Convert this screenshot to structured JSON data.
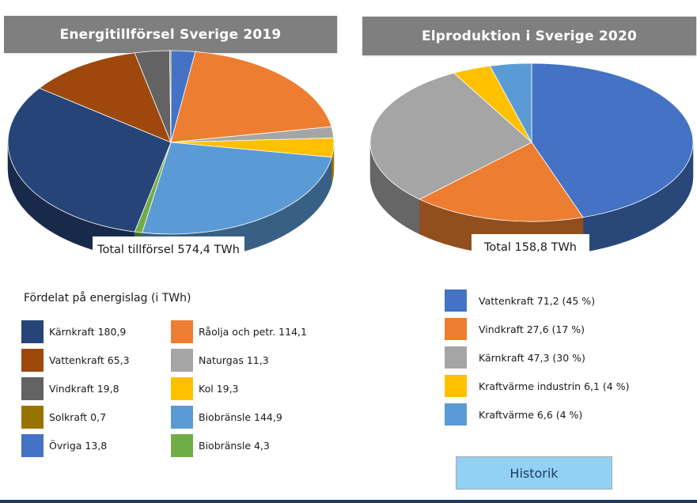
{
  "left_chart": {
    "title": "Energitillförsel Sverige 2019",
    "total_label": "Total tillförsel 574,4 TWh",
    "legend_title": "Fördelat på energislag (i TWh)"
  },
  "right_chart": {
    "title": "Elproduktion i Sverige 2020",
    "total_label": "Total 158,8 TWh"
  },
  "legend_left": [
    {
      "label": "Kärnkraft 180,9",
      "color": "#264478"
    },
    {
      "label": "Vattenkraft 65,3",
      "color": "#9e480e"
    },
    {
      "label": "Vindkraft 19,8",
      "color": "#636363"
    },
    {
      "label": "Solkraft 0,7",
      "color": "#997300"
    },
    {
      "label": "Övriga 13,8",
      "color": "#4472c4"
    }
  ],
  "legend_mid": [
    {
      "label": "Råolja och petr. 114,1",
      "color": "#ed7d31"
    },
    {
      "label": "Naturgas 11,3",
      "color": "#a5a5a5"
    },
    {
      "label": "Kol 19,3",
      "color": "#ffc000"
    },
    {
      "label": "Biobränsle 144,9",
      "color": "#5b9bd5"
    },
    {
      "label": "Biobränsle 4,3",
      "color": "#70ad47"
    }
  ],
  "legend_right": [
    {
      "label": "Vattenkraft 71,2 (45 %)",
      "color": "#4472c4"
    },
    {
      "label": "Vindkraft 27,6 (17 %)",
      "color": "#ed7d31"
    },
    {
      "label": "Kärnkraft 47,3 (30 %)",
      "color": "#a5a5a5"
    },
    {
      "label": "Kraftvärme industrin 6,1 (4 %)",
      "color": "#ffc000"
    },
    {
      "label": "Kraftvärme 6,6 (4 %)",
      "color": "#5b9bd5"
    }
  ],
  "button": {
    "label": "Historik"
  },
  "chart_data": [
    {
      "type": "pie",
      "title": "Energitillförsel Sverige 2019",
      "categories": [
        "Övriga",
        "Råolja och petr.",
        "Naturgas",
        "Kol",
        "Biobränsle",
        "Biobränsle",
        "Kärnkraft",
        "Vattenkraft",
        "Vindkraft",
        "Solkraft"
      ],
      "values": [
        13.8,
        114.1,
        11.3,
        19.3,
        144.9,
        4.3,
        180.9,
        65.3,
        19.8,
        0.7
      ],
      "colors": [
        "#4472c4",
        "#ed7d31",
        "#a5a5a5",
        "#ffc000",
        "#5b9bd5",
        "#70ad47",
        "#264478",
        "#9e480e",
        "#636363",
        "#997300"
      ],
      "total": "574,4 TWh",
      "unit": "TWh",
      "style": "3d"
    },
    {
      "type": "pie",
      "title": "Elproduktion i Sverige 2020",
      "categories": [
        "Vattenkraft",
        "Vindkraft",
        "Kärnkraft",
        "Kraftvärme industrin",
        "Kraftvärme"
      ],
      "values": [
        71.2,
        27.6,
        47.3,
        6.1,
        6.6
      ],
      "percent": [
        45,
        17,
        30,
        4,
        4
      ],
      "colors": [
        "#4472c4",
        "#ed7d31",
        "#a5a5a5",
        "#ffc000",
        "#5b9bd5"
      ],
      "total": "158,8 TWh",
      "unit": "TWh",
      "style": "3d"
    }
  ]
}
